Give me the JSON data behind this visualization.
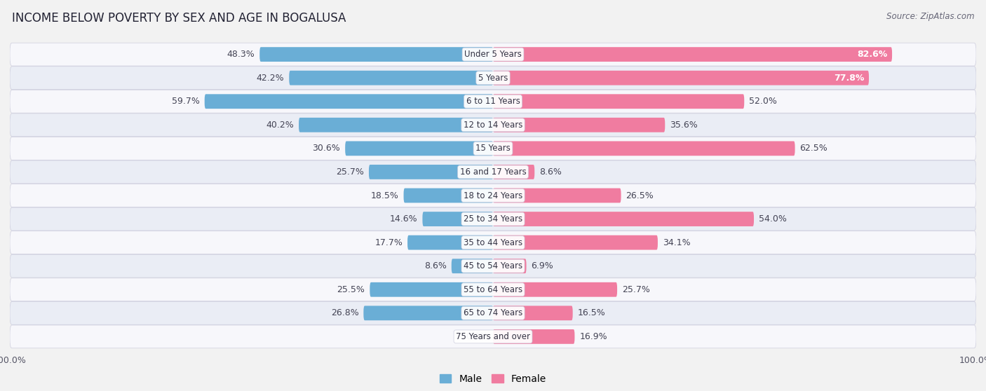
{
  "title": "INCOME BELOW POVERTY BY SEX AND AGE IN BOGALUSA",
  "source": "Source: ZipAtlas.com",
  "categories": [
    "Under 5 Years",
    "5 Years",
    "6 to 11 Years",
    "12 to 14 Years",
    "15 Years",
    "16 and 17 Years",
    "18 to 24 Years",
    "25 to 34 Years",
    "35 to 44 Years",
    "45 to 54 Years",
    "55 to 64 Years",
    "65 to 74 Years",
    "75 Years and over"
  ],
  "male": [
    48.3,
    42.2,
    59.7,
    40.2,
    30.6,
    25.7,
    18.5,
    14.6,
    17.7,
    8.6,
    25.5,
    26.8,
    0.0
  ],
  "female": [
    82.6,
    77.8,
    52.0,
    35.6,
    62.5,
    8.6,
    26.5,
    54.0,
    34.1,
    6.9,
    25.7,
    16.5,
    16.9
  ],
  "male_color": "#6aaed6",
  "female_color": "#f07ca0",
  "male_label": "Male",
  "female_label": "Female",
  "axis_max": 100.0,
  "bg_color": "#f2f2f2",
  "row_bg_odd": "#f9f9f9",
  "row_bg_even": "#e8eaf0",
  "title_fontsize": 12,
  "source_fontsize": 8.5,
  "label_fontsize": 9,
  "category_fontsize": 8.5,
  "legend_fontsize": 10,
  "axis_label_fontsize": 9
}
